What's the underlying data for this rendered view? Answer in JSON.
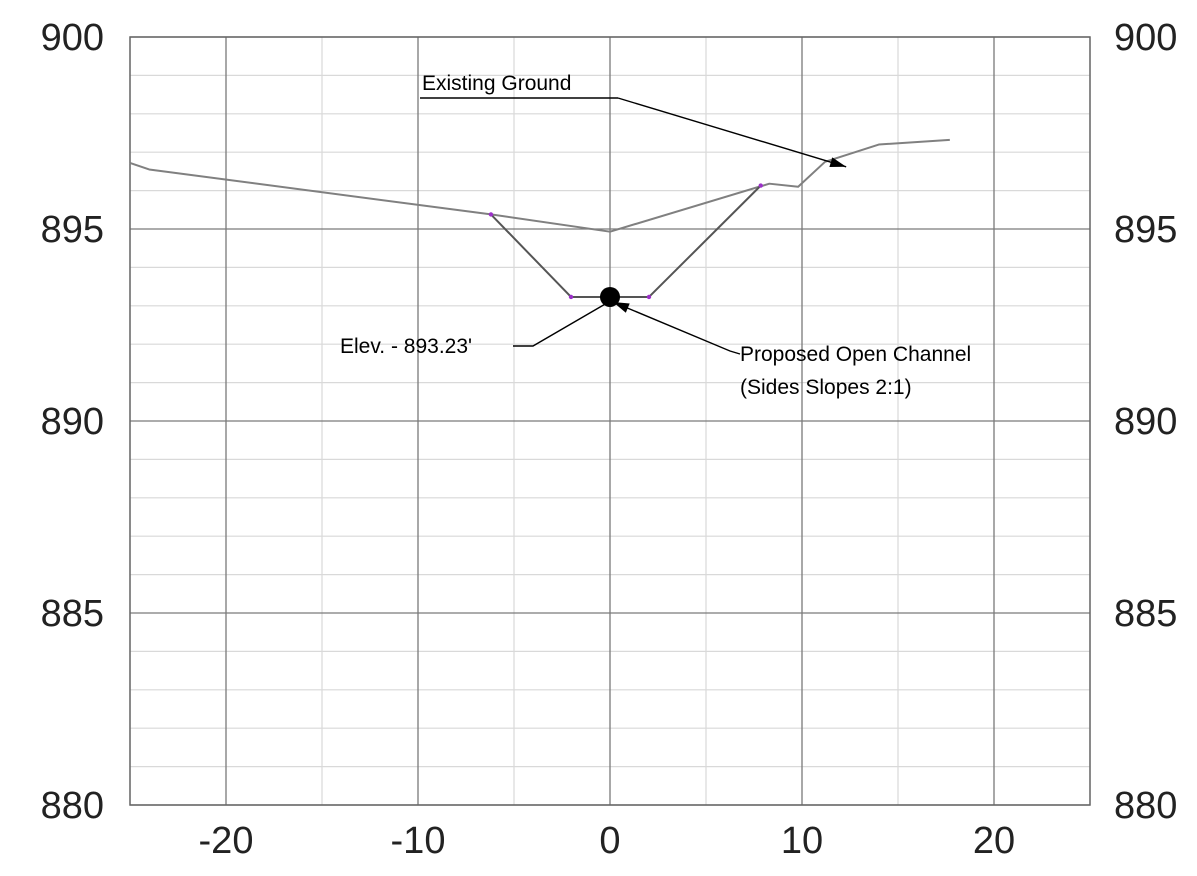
{
  "chart_data": {
    "type": "line",
    "title": "",
    "xlabel": "",
    "ylabel": "",
    "xlim": [
      -25,
      25
    ],
    "ylim": [
      880,
      900
    ],
    "x_major_ticks": [
      -20,
      -10,
      0,
      10,
      20
    ],
    "x_tick_labels": [
      "-20",
      "-10",
      "0",
      "10",
      "20"
    ],
    "x_minor_step": 5,
    "y_major_ticks": [
      880,
      885,
      890,
      895,
      900
    ],
    "y_tick_labels": [
      "880",
      "885",
      "890",
      "895",
      "900"
    ],
    "y_minor_step": 1,
    "right_axis_labels": true,
    "grid": true,
    "series": [
      {
        "key": "existing",
        "color": "#808080",
        "x": [
          -25,
          -24,
          -6.2,
          0,
          8.3,
          9.8,
          11.2,
          14,
          17.7
        ],
        "y": [
          896.72,
          896.55,
          895.38,
          894.93,
          896.18,
          896.1,
          896.75,
          897.2,
          897.32
        ]
      },
      {
        "key": "channel",
        "color": "#555555",
        "vertex_color": "#9b30c8",
        "x": [
          -6.2,
          -2.03,
          2.03,
          7.85
        ],
        "y": [
          895.38,
          893.23,
          893.23,
          896.13
        ]
      }
    ],
    "invert_point": {
      "x": 0,
      "y": 893.23
    },
    "annotations": [
      {
        "key": "existing_ground",
        "text": "Existing Ground",
        "underline": true,
        "arrow_to": {
          "x": 12.3,
          "y": 896.62
        }
      },
      {
        "key": "elev",
        "text": "Elev. - 893.23'",
        "arrow_to": {
          "x": 0,
          "y": 893.23
        }
      },
      {
        "key": "proposed",
        "lines": [
          "Proposed Open Channel",
          "(Sides Slopes 2:1)"
        ],
        "arrow_to": {
          "x": 0,
          "y": 893.23
        }
      }
    ]
  }
}
